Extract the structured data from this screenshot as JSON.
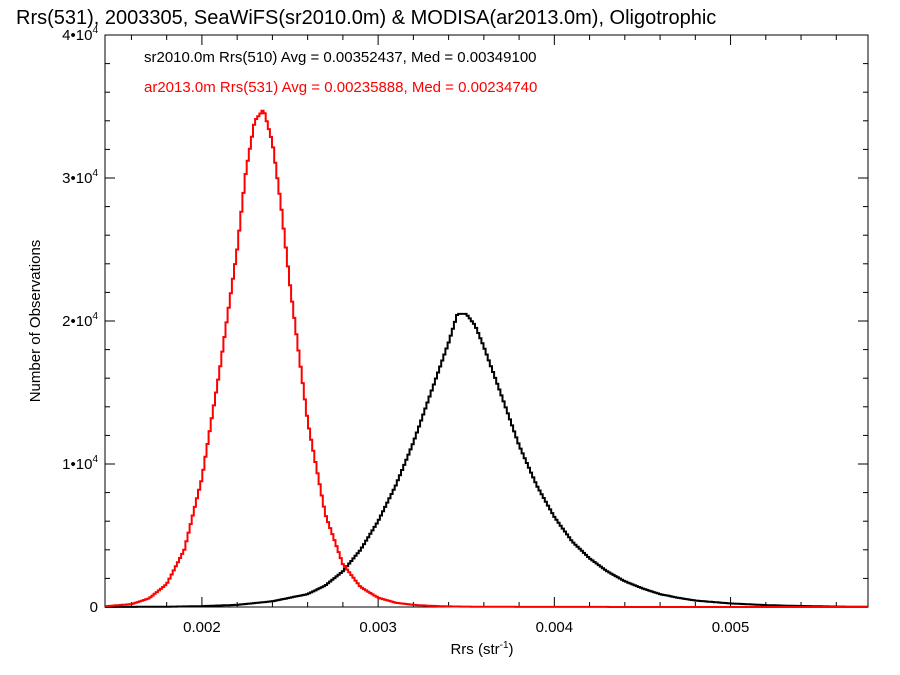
{
  "chart_data": {
    "type": "line",
    "title": "Rrs(531), 2003305, SeaWiFS(sr2010.0m) & MODISA(ar2013.0m), Oligotrophic",
    "xlabel": "Rrs (str",
    "xlabel_sup": "-1",
    "xlabel_end": ")",
    "ylabel": "Number of Observations",
    "xlim": [
      0.00145,
      0.00578
    ],
    "ylim": [
      0,
      40000
    ],
    "x_ticks": [
      0.002,
      0.003,
      0.004,
      0.005
    ],
    "x_tick_labels": [
      "0.002",
      "0.003",
      "0.004",
      "0.005"
    ],
    "y_ticks": [
      0,
      10000,
      20000,
      30000,
      40000
    ],
    "y_tick_labels": [
      {
        "base": "0",
        "exp": ""
      },
      {
        "base": "1•10",
        "exp": "4"
      },
      {
        "base": "2•10",
        "exp": "4"
      },
      {
        "base": "3•10",
        "exp": "4"
      },
      {
        "base": "4•10",
        "exp": "4"
      }
    ],
    "legend_placement": "top-left",
    "series": [
      {
        "name": "sr2010.0m Rrs(510) Avg = 0.00352437, Med = 0.00349100",
        "color": "#000000",
        "x": [
          0.00145,
          0.0018,
          0.002,
          0.0022,
          0.0024,
          0.0026,
          0.0027,
          0.0028,
          0.0029,
          0.003,
          0.0031,
          0.0032,
          0.0033,
          0.0034,
          0.00345,
          0.0035,
          0.00355,
          0.0036,
          0.0037,
          0.0038,
          0.0039,
          0.004,
          0.0041,
          0.0042,
          0.0043,
          0.0044,
          0.0045,
          0.0046,
          0.0047,
          0.0048,
          0.005,
          0.0052,
          0.0054,
          0.0056,
          0.00578
        ],
        "y": [
          0,
          20,
          60,
          150,
          400,
          900,
          1500,
          2500,
          4000,
          6000,
          8500,
          11500,
          15000,
          18500,
          20500,
          20500,
          19700,
          18200,
          14800,
          11300,
          8500,
          6300,
          4600,
          3400,
          2500,
          1800,
          1300,
          900,
          650,
          450,
          250,
          130,
          70,
          30,
          10
        ]
      },
      {
        "name": "ar2013.0m Rrs(531) Avg = 0.00235888, Med = 0.00234740",
        "color": "#ff0000",
        "x": [
          0.00145,
          0.0016,
          0.0017,
          0.0018,
          0.0019,
          0.002,
          0.0021,
          0.0022,
          0.00225,
          0.0023,
          0.00235,
          0.0024,
          0.00245,
          0.0025,
          0.0026,
          0.0027,
          0.0028,
          0.0029,
          0.003,
          0.0031,
          0.0032,
          0.0033,
          0.0034,
          0.0036,
          0.004,
          0.005,
          0.00578
        ],
        "y": [
          50,
          200,
          600,
          1600,
          4000,
          9000,
          16500,
          25000,
          30500,
          34000,
          34800,
          32500,
          28000,
          22500,
          13000,
          6500,
          3000,
          1400,
          650,
          300,
          150,
          80,
          40,
          15,
          5,
          0,
          0
        ]
      }
    ]
  }
}
